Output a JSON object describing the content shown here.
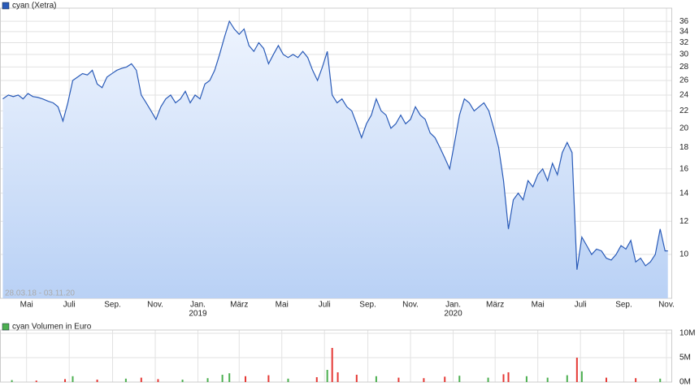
{
  "chart_data": [
    {
      "type": "line",
      "log_scale": true,
      "grid": true,
      "annotation": "28.03.18 - 03.11.20",
      "series": [
        {
          "name": "cyan (Xetra)",
          "color": "#2a5bb8",
          "x": [
            "2018-03-28",
            "2018-04-05",
            "2018-04-12",
            "2018-04-19",
            "2018-04-26",
            "2018-05-03",
            "2018-05-10",
            "2018-05-17",
            "2018-05-24",
            "2018-06-01",
            "2018-06-08",
            "2018-06-15",
            "2018-06-22",
            "2018-06-29",
            "2018-07-06",
            "2018-07-13",
            "2018-07-20",
            "2018-07-27",
            "2018-08-03",
            "2018-08-10",
            "2018-08-17",
            "2018-08-24",
            "2018-08-31",
            "2018-09-07",
            "2018-09-14",
            "2018-09-21",
            "2018-09-28",
            "2018-10-05",
            "2018-10-12",
            "2018-10-19",
            "2018-10-26",
            "2018-11-02",
            "2018-11-09",
            "2018-11-16",
            "2018-11-23",
            "2018-11-30",
            "2018-12-07",
            "2018-12-14",
            "2018-12-21",
            "2018-12-28",
            "2019-01-04",
            "2019-01-11",
            "2019-01-18",
            "2019-01-25",
            "2019-02-01",
            "2019-02-08",
            "2019-02-15",
            "2019-02-22",
            "2019-03-01",
            "2019-03-08",
            "2019-03-15",
            "2019-03-22",
            "2019-03-29",
            "2019-04-05",
            "2019-04-12",
            "2019-04-19",
            "2019-04-26",
            "2019-05-03",
            "2019-05-10",
            "2019-05-17",
            "2019-05-24",
            "2019-05-31",
            "2019-06-07",
            "2019-06-14",
            "2019-06-21",
            "2019-06-28",
            "2019-07-05",
            "2019-07-12",
            "2019-07-19",
            "2019-07-26",
            "2019-08-02",
            "2019-08-09",
            "2019-08-16",
            "2019-08-23",
            "2019-08-30",
            "2019-09-06",
            "2019-09-13",
            "2019-09-20",
            "2019-09-27",
            "2019-10-04",
            "2019-10-11",
            "2019-10-18",
            "2019-10-25",
            "2019-11-01",
            "2019-11-08",
            "2019-11-15",
            "2019-11-22",
            "2019-11-29",
            "2019-12-06",
            "2019-12-13",
            "2019-12-20",
            "2019-12-27",
            "2020-01-03",
            "2020-01-10",
            "2020-01-17",
            "2020-01-24",
            "2020-01-31",
            "2020-02-07",
            "2020-02-14",
            "2020-02-21",
            "2020-02-28",
            "2020-03-06",
            "2020-03-13",
            "2020-03-20",
            "2020-03-27",
            "2020-04-03",
            "2020-04-10",
            "2020-04-17",
            "2020-04-24",
            "2020-05-01",
            "2020-05-08",
            "2020-05-15",
            "2020-05-22",
            "2020-05-29",
            "2020-06-05",
            "2020-06-12",
            "2020-06-19",
            "2020-06-26",
            "2020-07-03",
            "2020-07-10",
            "2020-07-17",
            "2020-07-24",
            "2020-07-31",
            "2020-08-07",
            "2020-08-14",
            "2020-08-21",
            "2020-08-28",
            "2020-09-04",
            "2020-09-11",
            "2020-09-18",
            "2020-09-25",
            "2020-10-02",
            "2020-10-09",
            "2020-10-16",
            "2020-10-23",
            "2020-10-30",
            "2020-11-03"
          ],
          "values": [
            23.5,
            24.0,
            23.8,
            24.0,
            23.5,
            24.2,
            23.8,
            23.7,
            23.5,
            23.2,
            23.0,
            22.5,
            20.8,
            23.0,
            26.0,
            26.5,
            27.0,
            26.8,
            27.5,
            25.5,
            25.0,
            26.5,
            27.0,
            27.5,
            27.8,
            28.0,
            28.5,
            27.5,
            24.0,
            23.0,
            22.0,
            21.0,
            22.5,
            23.5,
            24.0,
            23.0,
            23.5,
            24.5,
            23.0,
            24.0,
            23.5,
            25.5,
            26.0,
            27.5,
            30.0,
            33.0,
            36.0,
            34.5,
            33.5,
            34.5,
            31.5,
            30.5,
            32.0,
            31.0,
            28.5,
            30.0,
            31.5,
            30.0,
            29.5,
            30.0,
            29.5,
            30.5,
            29.5,
            27.5,
            26.0,
            28.0,
            30.5,
            24.0,
            23.0,
            23.5,
            22.5,
            22.0,
            20.5,
            19.0,
            20.5,
            21.5,
            23.5,
            22.0,
            21.5,
            20.0,
            20.5,
            21.5,
            20.5,
            21.0,
            22.5,
            21.5,
            21.0,
            19.5,
            19.0,
            18.0,
            17.0,
            16.0,
            18.5,
            21.5,
            23.5,
            23.0,
            22.0,
            22.5,
            23.0,
            22.0,
            20.0,
            18.0,
            15.0,
            11.5,
            13.5,
            14.0,
            13.5,
            15.0,
            14.5,
            15.5,
            16.0,
            15.0,
            16.5,
            15.5,
            17.5,
            18.5,
            17.5,
            9.2,
            11.0,
            10.5,
            10.0,
            10.3,
            10.2,
            9.8,
            9.7,
            10.0,
            10.5,
            10.3,
            10.8,
            9.6,
            9.8,
            9.4,
            9.6,
            10.0,
            11.5,
            10.2,
            10.2
          ]
        }
      ],
      "xlim": [
        "2018-03-24",
        "2020-11-08"
      ],
      "ylim": [
        7.86,
        38
      ],
      "yticks": [
        10,
        12,
        14,
        16,
        18,
        20,
        22,
        24,
        26,
        28,
        30,
        32,
        34,
        36
      ],
      "xticks": [
        {
          "value": "2018-05-01",
          "label": "Mai"
        },
        {
          "value": "2018-07-01",
          "label": "Juli"
        },
        {
          "value": "2018-09-01",
          "label": "Sep."
        },
        {
          "value": "2018-11-01",
          "label": "Nov."
        },
        {
          "value": "2019-01-01",
          "label": "Jan."
        },
        {
          "value": "2019-03-01",
          "label": "März"
        },
        {
          "value": "2019-05-01",
          "label": "Mai"
        },
        {
          "value": "2019-07-01",
          "label": "Juli"
        },
        {
          "value": "2019-09-01",
          "label": "Sep."
        },
        {
          "value": "2019-11-01",
          "label": "Nov."
        },
        {
          "value": "2020-01-01",
          "label": "Jan."
        },
        {
          "value": "2020-03-01",
          "label": "März"
        },
        {
          "value": "2020-05-01",
          "label": "Mai"
        },
        {
          "value": "2020-07-01",
          "label": "Juli"
        },
        {
          "value": "2020-09-01",
          "label": "Sep."
        },
        {
          "value": "2020-11-01",
          "label": "Nov."
        }
      ],
      "year_labels": [
        {
          "value": "2019-01-01",
          "label": "2019"
        },
        {
          "value": "2020-01-01",
          "label": "2020"
        }
      ]
    },
    {
      "type": "bar",
      "grid": true,
      "xlim": [
        "2018-03-24",
        "2020-11-08"
      ],
      "ylim": [
        0,
        10000000
      ],
      "yticks": [
        {
          "value": 0,
          "label": "0M"
        },
        {
          "value": 5000000,
          "label": "5M"
        },
        {
          "value": 10000000,
          "label": "10M"
        }
      ],
      "series": [
        {
          "name": "cyan Volumen in Euro",
          "color": "#4caf50",
          "x": [
            "2018-04-10",
            "2018-05-15",
            "2018-06-25",
            "2018-07-06",
            "2018-08-10",
            "2018-09-20",
            "2018-10-12",
            "2018-11-05",
            "2018-12-10",
            "2019-01-15",
            "2019-02-05",
            "2019-02-15",
            "2019-03-10",
            "2019-04-12",
            "2019-05-10",
            "2019-06-20",
            "2019-07-05",
            "2019-07-12",
            "2019-07-20",
            "2019-08-16",
            "2019-09-13",
            "2019-10-15",
            "2019-11-20",
            "2019-12-20",
            "2020-01-10",
            "2020-02-20",
            "2020-03-13",
            "2020-03-20",
            "2020-04-15",
            "2020-05-15",
            "2020-06-12",
            "2020-06-26",
            "2020-07-03",
            "2020-08-07",
            "2020-09-18",
            "2020-10-23"
          ],
          "values": [
            400000,
            300000,
            600000,
            1200000,
            500000,
            700000,
            900000,
            600000,
            500000,
            800000,
            1500000,
            1800000,
            1200000,
            1400000,
            700000,
            1000000,
            2500000,
            7000000,
            2000000,
            1500000,
            1200000,
            900000,
            800000,
            1100000,
            1300000,
            900000,
            1600000,
            2000000,
            1200000,
            900000,
            1400000,
            5000000,
            2200000,
            900000,
            800000,
            700000
          ],
          "bar_colors": [
            "#4caf50",
            "#e53935",
            "#e53935",
            "#4caf50",
            "#e53935",
            "#4caf50",
            "#e53935",
            "#e53935",
            "#4caf50",
            "#4caf50",
            "#4caf50",
            "#4caf50",
            "#e53935",
            "#e53935",
            "#4caf50",
            "#e53935",
            "#4caf50",
            "#e53935",
            "#e53935",
            "#e53935",
            "#4caf50",
            "#e53935",
            "#e53935",
            "#e53935",
            "#4caf50",
            "#4caf50",
            "#e53935",
            "#e53935",
            "#4caf50",
            "#4caf50",
            "#4caf50",
            "#e53935",
            "#4caf50",
            "#e53935",
            "#e53935",
            "#4caf50"
          ]
        }
      ]
    }
  ]
}
